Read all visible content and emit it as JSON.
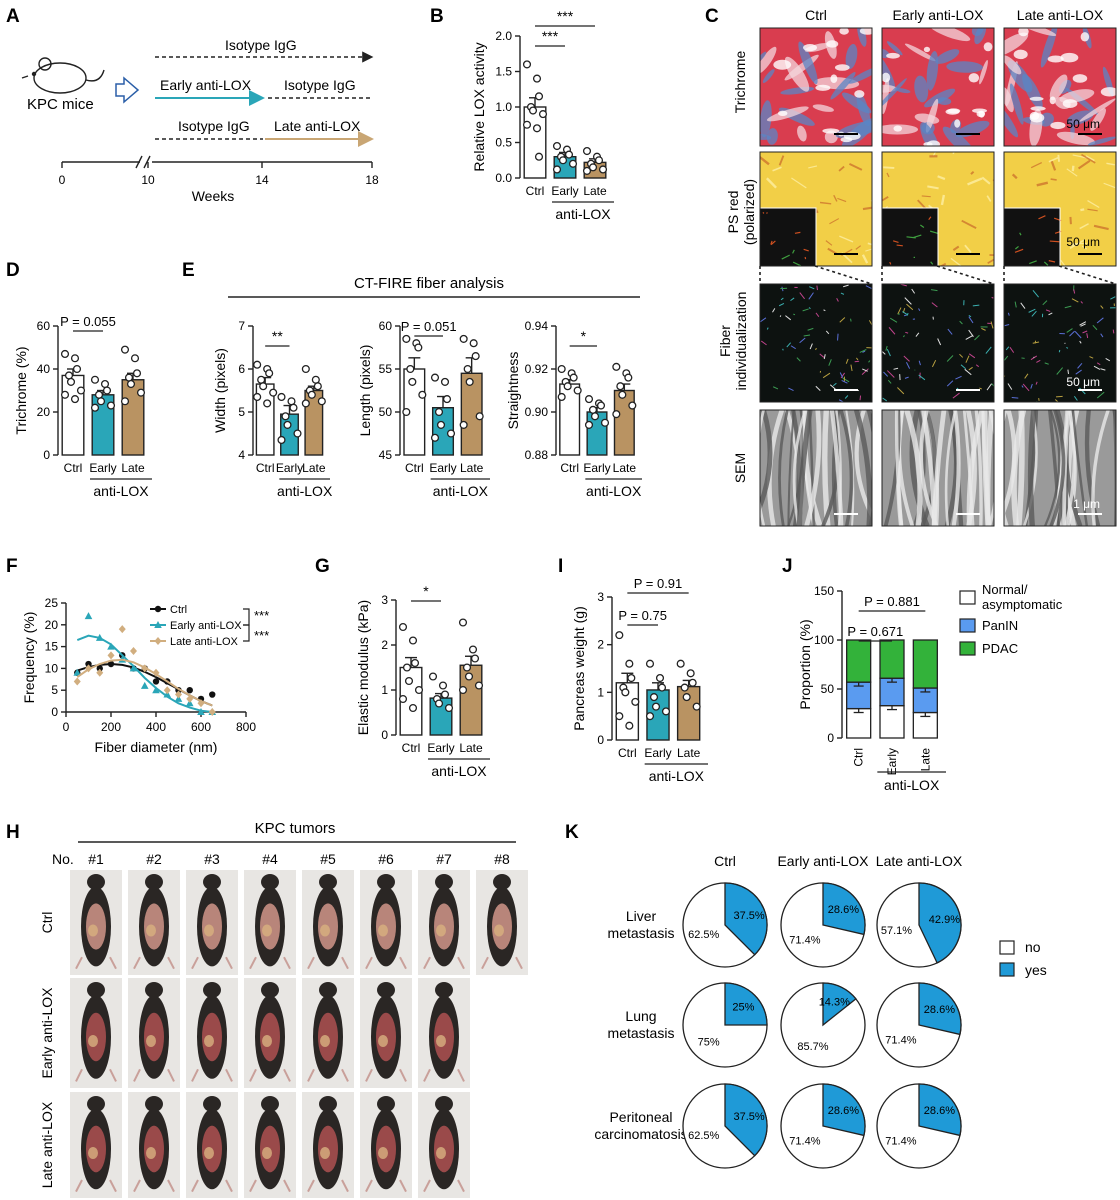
{
  "colors": {
    "ctrl": "#ffffff",
    "early": "#2aa6b8",
    "late": "#b99362",
    "pdac": "#33b23a",
    "panin": "#5a9bf0",
    "normal": "#ffffff",
    "yes": "#1f9ad7",
    "no": "#ffffff",
    "trichrome_red": "#d93d4f",
    "trichrome_blue": "#5a86c6",
    "psred_yellow": "#f2cf47",
    "sem_gray": "#9a9a9a",
    "fiber_bg": "#0d1210",
    "photo_bg": "#e8e6e3"
  },
  "panel_letters": {
    "A": "A",
    "B": "B",
    "C": "C",
    "D": "D",
    "E": "E",
    "F": "F",
    "G": "G",
    "H": "H",
    "I": "I",
    "J": "J",
    "K": "K"
  },
  "panelA": {
    "mouse_label": "KPC mice",
    "row1": "Isotype IgG",
    "row2a": "Early anti-LOX",
    "row2b": "Isotype IgG",
    "row3a": "Isotype IgG",
    "row3b": "Late anti-LOX",
    "ticks": [
      "0",
      "10",
      "14",
      "18"
    ],
    "xlabel": "Weeks"
  },
  "common": {
    "groups": [
      "Ctrl",
      "Early",
      "Late"
    ],
    "treatment": "anti-LOX"
  },
  "panelB": {
    "ylabel": "Relative LOX activity",
    "yticks": [
      "0.0",
      "0.5",
      "1.0",
      "1.5",
      "2.0"
    ],
    "sig1": "***",
    "sig2": "***"
  },
  "panelC": {
    "cols": [
      "Ctrl",
      "Early anti-LOX",
      "Late anti-LOX"
    ],
    "rows": [
      "Trichrome",
      "PS red",
      "(polarized)",
      "Fiber",
      "individualization",
      "SEM"
    ],
    "scale_50": "50 μm",
    "scale_1": "1 μm"
  },
  "panelD": {
    "ylabel": "Trichrome (%)",
    "yticks": [
      "0",
      "20",
      "40",
      "60"
    ],
    "p": "P = 0.055"
  },
  "panelE": {
    "title": "CT-FIRE fiber analysis",
    "width_ylabel": "Width (pixels)",
    "width_yticks": [
      "4",
      "5",
      "6",
      "7"
    ],
    "width_sig": "**",
    "length_ylabel": "Length (pixels)",
    "length_yticks": [
      "45",
      "50",
      "55",
      "60"
    ],
    "length_p": "P = 0.051",
    "straight_ylabel": "Straightness",
    "straight_yticks": [
      "0.88",
      "0.90",
      "0.92",
      "0.94"
    ],
    "straight_sig": "*"
  },
  "panelF": {
    "ylabel": "Frequency (%)",
    "xlabel": "Fiber diameter (nm)",
    "xticks": [
      "0",
      "200",
      "400",
      "600",
      "800"
    ],
    "yticks": [
      "0",
      "5",
      "10",
      "15",
      "20",
      "25"
    ],
    "legend": [
      "Ctrl",
      "Early anti-LOX",
      "Late anti-LOX"
    ],
    "sig1": "***",
    "sig2": "***"
  },
  "panelG": {
    "ylabel": "Elastic modulus (kPa)",
    "yticks": [
      "0",
      "1",
      "2",
      "3"
    ],
    "sig": "*"
  },
  "panelI": {
    "ylabel": "Pancreas weight (g)",
    "yticks": [
      "0",
      "1",
      "2",
      "3"
    ],
    "p1": "P = 0.75",
    "p2": "P = 0.91"
  },
  "panelJ": {
    "ylabel": "Proportion (%)",
    "yticks": [
      "0",
      "50",
      "100",
      "150"
    ],
    "p1": "P = 0.671",
    "p2": "P = 0.881",
    "legend": [
      "Normal/",
      "asymptomatic",
      "PanIN",
      "PDAC"
    ]
  },
  "panelH": {
    "title": "KPC tumors",
    "no_label": "No.",
    "numbers": [
      "#1",
      "#2",
      "#3",
      "#4",
      "#5",
      "#6",
      "#7",
      "#8"
    ],
    "rows": [
      "Ctrl",
      "Early anti-LOX",
      "Late anti-LOX"
    ]
  },
  "panelK": {
    "cols": [
      "Ctrl",
      "Early anti-LOX",
      "Late anti-LOX"
    ],
    "rows": [
      [
        "Liver",
        "metastasis"
      ],
      [
        "Lung",
        "metastasis"
      ],
      [
        "Peritoneal",
        "carcinomatosis"
      ]
    ],
    "legend": [
      "no",
      "yes"
    ]
  },
  "chart_data": [
    {
      "type": "bar",
      "panel": "B",
      "categories": [
        "Ctrl",
        "Early",
        "Late"
      ],
      "values": [
        1.0,
        0.3,
        0.22
      ],
      "errors": [
        0.13,
        0.06,
        0.05
      ],
      "points": [
        [
          1.6,
          1.4,
          1.15,
          1.0,
          0.95,
          0.9,
          0.75,
          0.7,
          0.3
        ],
        [
          0.45,
          0.4,
          0.33,
          0.3,
          0.25,
          0.2,
          0.12
        ],
        [
          0.38,
          0.3,
          0.25,
          0.2,
          0.15,
          0.12,
          0.1
        ]
      ],
      "ylim": [
        0,
        2.0
      ],
      "ylabel": "Relative LOX activity"
    },
    {
      "type": "bar",
      "panel": "D",
      "categories": [
        "Ctrl",
        "Early",
        "Late"
      ],
      "values": [
        37,
        28,
        35
      ],
      "errors": [
        3,
        2,
        3
      ],
      "points": [
        [
          47,
          45,
          40,
          37,
          34,
          30,
          28,
          26
        ],
        [
          35,
          33,
          30,
          28,
          25,
          23,
          22
        ],
        [
          49,
          45,
          38,
          36,
          33,
          29,
          25
        ]
      ],
      "ylim": [
        0,
        60
      ],
      "ylabel": "Trichrome (%)"
    },
    {
      "type": "bar",
      "panel": "E-width",
      "categories": [
        "Ctrl",
        "Early",
        "Late"
      ],
      "values": [
        5.65,
        4.95,
        5.5
      ],
      "errors": [
        0.15,
        0.2,
        0.1
      ],
      "points": [
        [
          6.1,
          6.0,
          5.9,
          5.75,
          5.6,
          5.45,
          5.35,
          5.2
        ],
        [
          5.35,
          5.25,
          5.1,
          4.9,
          4.7,
          4.5,
          4.35
        ],
        [
          6.0,
          5.75,
          5.6,
          5.5,
          5.4,
          5.25,
          5.2
        ]
      ],
      "ylim": [
        4,
        7
      ],
      "ylabel": "Width (pixels)"
    },
    {
      "type": "bar",
      "panel": "E-length",
      "categories": [
        "Ctrl",
        "Early",
        "Late"
      ],
      "values": [
        55,
        50.5,
        54.5
      ],
      "errors": [
        1.3,
        1.3,
        1.8
      ],
      "points": [
        [
          58.5,
          58,
          57.5,
          55,
          53.5,
          52,
          50
        ],
        [
          54,
          53.5,
          51.5,
          50,
          48.5,
          47.5,
          47
        ],
        [
          58.5,
          58,
          56.5,
          55,
          53.5,
          49.5,
          48.5
        ]
      ],
      "ylim": [
        45,
        60
      ],
      "ylabel": "Length (pixels)"
    },
    {
      "type": "bar",
      "panel": "E-straightness",
      "categories": [
        "Ctrl",
        "Early",
        "Late"
      ],
      "values": [
        0.913,
        0.9,
        0.91
      ],
      "errors": [
        0.002,
        0.002,
        0.003
      ],
      "points": [
        [
          0.92,
          0.918,
          0.916,
          0.914,
          0.912,
          0.91,
          0.907
        ],
        [
          0.906,
          0.904,
          0.903,
          0.901,
          0.898,
          0.895,
          0.894
        ],
        [
          0.921,
          0.918,
          0.916,
          0.912,
          0.908,
          0.903,
          0.899
        ]
      ],
      "ylim": [
        0.88,
        0.94
      ],
      "ylabel": "Straightness"
    },
    {
      "type": "scatter",
      "panel": "F",
      "x": [
        50,
        100,
        150,
        200,
        250,
        300,
        350,
        400,
        450,
        500,
        550,
        600,
        650
      ],
      "series": [
        {
          "name": "Ctrl",
          "values": [
            9,
            11,
            10,
            11,
            13,
            10,
            10,
            7,
            7,
            5,
            5,
            3,
            4
          ],
          "fit": [
            9.5,
            10.3,
            10.8,
            11,
            10.8,
            10.2,
            9.2,
            8,
            6.6,
            5.2,
            3.8,
            2.5,
            1.5
          ]
        },
        {
          "name": "Early anti-LOX",
          "values": [
            9,
            22,
            17,
            15,
            12,
            10,
            6,
            5,
            4,
            3,
            2,
            0,
            0
          ],
          "fit": [
            16.5,
            17.5,
            17,
            15.5,
            13,
            10.5,
            7.8,
            5.5,
            3.5,
            2,
            1,
            0.3,
            0
          ]
        },
        {
          "name": "Late anti-LOX",
          "values": [
            7,
            10,
            9,
            13,
            19,
            14,
            10,
            9,
            5,
            4,
            3,
            2,
            0
          ],
          "fit": [
            8,
            9.8,
            11,
            11.8,
            12,
            11.4,
            10.2,
            8.7,
            7,
            5.3,
            3.8,
            2.5,
            1.5
          ]
        }
      ],
      "xlim": [
        0,
        800
      ],
      "ylim": [
        0,
        25
      ],
      "xlabel": "Fiber diameter (nm)",
      "ylabel": "Frequency (%)"
    },
    {
      "type": "bar",
      "panel": "G",
      "categories": [
        "Ctrl",
        "Early",
        "Late"
      ],
      "values": [
        1.5,
        0.82,
        1.55
      ],
      "errors": [
        0.22,
        0.1,
        0.2
      ],
      "points": [
        [
          2.4,
          2.1,
          1.6,
          1.5,
          1.2,
          1.0,
          0.8,
          0.6
        ],
        [
          1.3,
          1.1,
          0.9,
          0.8,
          0.7,
          0.6
        ],
        [
          2.5,
          1.9,
          1.7,
          1.5,
          1.3,
          1.1,
          1.0
        ]
      ],
      "ylim": [
        0,
        3
      ],
      "ylabel": "Elastic modulus (kPa)"
    },
    {
      "type": "bar",
      "panel": "I",
      "categories": [
        "Ctrl",
        "Early",
        "Late"
      ],
      "values": [
        1.2,
        1.05,
        1.12
      ],
      "errors": [
        0.2,
        0.15,
        0.13
      ],
      "points": [
        [
          2.2,
          1.6,
          1.3,
          1.1,
          1.0,
          0.8,
          0.5,
          0.3
        ],
        [
          1.6,
          1.3,
          1.1,
          0.9,
          0.7,
          0.6,
          0.5
        ],
        [
          1.6,
          1.4,
          1.2,
          1.1,
          0.9,
          0.7
        ]
      ],
      "ylim": [
        0,
        3
      ],
      "ylabel": "Pancreas weight (g)"
    },
    {
      "type": "bar",
      "panel": "J",
      "categories": [
        "Ctrl",
        "Early",
        "Late"
      ],
      "series": [
        {
          "name": "Normal/asymptomatic",
          "values": [
            30,
            33,
            26
          ]
        },
        {
          "name": "PanIN",
          "values": [
            27,
            28,
            25
          ]
        },
        {
          "name": "PDAC",
          "values": [
            43,
            39,
            49
          ]
        }
      ],
      "errors": [
        4,
        4,
        4
      ],
      "ylim": [
        0,
        150
      ],
      "ylabel": "Proportion (%)"
    },
    {
      "type": "pie",
      "panel": "K",
      "rows": [
        "Liver metastasis",
        "Lung metastasis",
        "Peritoneal carcinomatosis"
      ],
      "cols": [
        "Ctrl",
        "Early anti-LOX",
        "Late anti-LOX"
      ],
      "yes": [
        [
          37.5,
          28.6,
          42.9
        ],
        [
          25,
          14.3,
          28.6
        ],
        [
          37.5,
          28.6,
          28.6
        ]
      ],
      "yes_labels": [
        [
          "37.5%",
          "28.6%",
          "42.9%"
        ],
        [
          "25%",
          "14.3%",
          "28.6%"
        ],
        [
          "37.5%",
          "28.6%",
          "28.6%"
        ]
      ],
      "no_labels": [
        [
          "62.5%",
          "71.4%",
          "57.1%"
        ],
        [
          "75%",
          "85.7%",
          "71.4%"
        ],
        [
          "62.5%",
          "71.4%",
          "71.4%"
        ]
      ]
    }
  ]
}
